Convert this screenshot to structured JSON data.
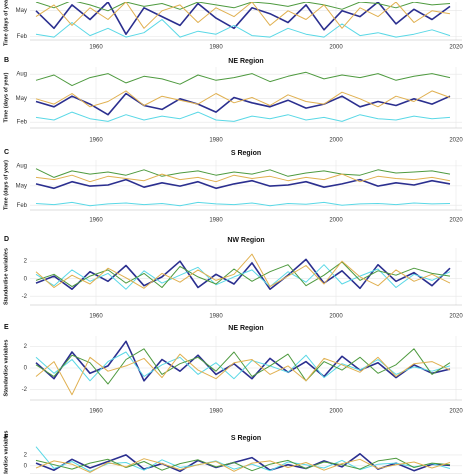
{
  "chart_data": [
    {
      "type": "line",
      "ylabel": "Time (days of year)",
      "x": [
        1950,
        1953,
        1956,
        1959,
        1962,
        1965,
        1968,
        1971,
        1974,
        1977,
        1980,
        1983,
        1986,
        1989,
        1992,
        1995,
        1998,
        2001,
        2004,
        2007,
        2010,
        2013,
        2016,
        2019
      ],
      "xlim": [
        1949,
        2021
      ],
      "xticks": [
        1960,
        1980,
        2000,
        2020
      ],
      "ylim": [
        20,
        150
      ],
      "yticks": [
        {
          "value": 32,
          "label": "Feb"
        },
        {
          "value": 121,
          "label": "May"
        }
      ],
      "grid": true,
      "series": [
        {
          "color": "#2b2f8f",
          "values": [
            120,
            60,
            140,
            90,
            150,
            40,
            130,
            100,
            70,
            145,
            95,
            60,
            130,
            110,
            80,
            140,
            55,
            120,
            100,
            150,
            75,
            125,
            90,
            135
          ]
        },
        {
          "color": "#5ad8e6",
          "values": [
            40,
            30,
            80,
            35,
            60,
            30,
            45,
            90,
            30,
            50,
            40,
            70,
            35,
            30,
            60,
            40,
            30,
            75,
            35,
            45,
            30,
            40,
            55,
            35
          ]
        },
        {
          "color": "#4e9a3f",
          "values": [
            150,
            130,
            155,
            140,
            120,
            150,
            135,
            145,
            125,
            150,
            140,
            130,
            150,
            145,
            135,
            150,
            140,
            125,
            150,
            145,
            130,
            150,
            140,
            145
          ]
        },
        {
          "color": "#e0b050",
          "values": [
            100,
            140,
            70,
            130,
            90,
            150,
            60,
            120,
            140,
            80,
            130,
            100,
            150,
            70,
            120,
            90,
            140,
            60,
            130,
            100,
            150,
            80,
            120,
            110
          ]
        }
      ]
    },
    {
      "type": "line",
      "label": "B",
      "title": "NE Region",
      "ylabel": "Time (days of year)",
      "x": [
        1950,
        1953,
        1956,
        1959,
        1962,
        1965,
        1968,
        1971,
        1974,
        1977,
        1980,
        1983,
        1986,
        1989,
        1992,
        1995,
        1998,
        2001,
        2004,
        2007,
        2010,
        2013,
        2016,
        2019
      ],
      "xlim": [
        1949,
        2021
      ],
      "xticks": [
        1960,
        1980,
        2000,
        2020
      ],
      "ylim": [
        10,
        240
      ],
      "yticks": [
        {
          "value": 32,
          "label": "Feb"
        },
        {
          "value": 121,
          "label": "May"
        },
        {
          "value": 213,
          "label": "Aug"
        }
      ],
      "grid": true,
      "series": [
        {
          "color": "#2b2f8f",
          "values": [
            110,
            90,
            130,
            100,
            60,
            140,
            95,
            80,
            120,
            100,
            70,
            125,
            105,
            90,
            115,
            85,
            100,
            130,
            90,
            110,
            95,
            120,
            100,
            130
          ]
        },
        {
          "color": "#5ad8e6",
          "values": [
            50,
            40,
            70,
            45,
            35,
            60,
            40,
            55,
            45,
            70,
            40,
            35,
            55,
            45,
            60,
            40,
            50,
            35,
            60,
            45,
            40,
            55,
            45,
            50
          ]
        },
        {
          "color": "#4e9a3f",
          "values": [
            190,
            210,
            170,
            200,
            215,
            180,
            205,
            195,
            175,
            210,
            190,
            200,
            215,
            185,
            205,
            220,
            195,
            210,
            200,
            215,
            190,
            205,
            215,
            200
          ]
        },
        {
          "color": "#e0b050",
          "values": [
            120,
            100,
            140,
            90,
            110,
            150,
            95,
            130,
            115,
            100,
            140,
            105,
            125,
            95,
            135,
            110,
            100,
            145,
            120,
            90,
            130,
            110,
            150,
            125
          ]
        }
      ]
    },
    {
      "type": "line",
      "label": "C",
      "title": "S Region",
      "ylabel": "Time (days of year)",
      "x": [
        1950,
        1953,
        1956,
        1959,
        1962,
        1965,
        1968,
        1971,
        1974,
        1977,
        1980,
        1983,
        1986,
        1989,
        1992,
        1995,
        1998,
        2001,
        2004,
        2007,
        2010,
        2013,
        2016,
        2019
      ],
      "xlim": [
        1949,
        2021
      ],
      "xticks": [
        1960,
        1980,
        2000,
        2020
      ],
      "ylim": [
        10,
        240
      ],
      "yticks": [
        {
          "value": 32,
          "label": "Feb"
        },
        {
          "value": 121,
          "label": "May"
        },
        {
          "value": 213,
          "label": "Aug"
        }
      ],
      "grid": true,
      "series": [
        {
          "color": "#2b2f8f",
          "values": [
            130,
            110,
            140,
            120,
            125,
            150,
            115,
            135,
            120,
            140,
            110,
            130,
            145,
            120,
            125,
            140,
            115,
            130,
            150,
            120,
            135,
            125,
            145,
            130
          ]
        },
        {
          "color": "#5ad8e6",
          "values": [
            40,
            35,
            45,
            30,
            38,
            42,
            35,
            40,
            30,
            45,
            38,
            35,
            42,
            30,
            40,
            36,
            45,
            32,
            38,
            40,
            35,
            42,
            38,
            40
          ]
        },
        {
          "color": "#4e9a3f",
          "values": [
            200,
            160,
            190,
            175,
            185,
            170,
            195,
            165,
            180,
            190,
            170,
            185,
            175,
            195,
            165,
            180,
            190,
            175,
            170,
            195,
            180,
            185,
            190,
            175
          ]
        },
        {
          "color": "#e0b050",
          "values": [
            160,
            150,
            170,
            140,
            165,
            155,
            145,
            175,
            150,
            160,
            140,
            170,
            155,
            165,
            145,
            160,
            150,
            175,
            140,
            165,
            155,
            150,
            160,
            145
          ]
        }
      ]
    },
    {
      "type": "line",
      "label": "D",
      "title": "NW Region",
      "ylabel": "Standardise variables",
      "x": [
        1950,
        1953,
        1956,
        1959,
        1962,
        1965,
        1968,
        1971,
        1974,
        1977,
        1980,
        1983,
        1986,
        1989,
        1992,
        1995,
        1998,
        2001,
        2004,
        2007,
        2010,
        2013,
        2016,
        2019
      ],
      "xlim": [
        1949,
        2021
      ],
      "xticks": [
        1960,
        1980,
        2000,
        2020
      ],
      "ylim": [
        -3,
        3.5
      ],
      "yticks": [
        -2,
        0,
        2
      ],
      "grid": true,
      "series": [
        {
          "color": "#2b2f8f",
          "values": [
            -0.5,
            0.3,
            -1.2,
            0.8,
            -0.3,
            1.5,
            -0.8,
            0.2,
            2.0,
            -1.0,
            0.5,
            -0.6,
            1.8,
            -1.2,
            0.4,
            2.2,
            -0.5,
            0.9,
            -1.1,
            1.6,
            -0.3,
            0.7,
            -0.8,
            1.2
          ]
        },
        {
          "color": "#5ad8e6",
          "values": [
            0.5,
            -0.8,
            1.0,
            -0.3,
            0.6,
            -1.2,
            0.9,
            -0.5,
            0.4,
            1.3,
            -0.7,
            0.2,
            1.0,
            -0.9,
            0.8,
            -0.4,
            1.6,
            -0.6,
            0.3,
            1.1,
            -1.0,
            0.5,
            -0.2,
            0.8
          ]
        },
        {
          "color": "#4e9a3f",
          "values": [
            -0.2,
            0.5,
            -0.9,
            0.3,
            1.0,
            -0.5,
            0.6,
            -1.0,
            1.4,
            0.2,
            -0.6,
            1.1,
            -0.3,
            0.8,
            1.6,
            -0.8,
            0.4,
            1.9,
            -0.2,
            0.9,
            0.4,
            1.2,
            0.6,
            0.3
          ]
        },
        {
          "color": "#e0b050",
          "values": [
            0.8,
            -1.0,
            0.4,
            -0.6,
            1.2,
            0.1,
            -1.1,
            0.6,
            -0.4,
            1.0,
            -0.2,
            0.5,
            2.8,
            -0.9,
            0.3,
            1.5,
            -0.6,
            2.0,
            0.2,
            -0.8,
            1.0,
            -0.3,
            0.5,
            -0.5
          ]
        }
      ]
    },
    {
      "type": "line",
      "label": "E",
      "title": "NE Region",
      "ylabel": "Standardise variables",
      "x": [
        1950,
        1953,
        1956,
        1959,
        1962,
        1965,
        1968,
        1971,
        1974,
        1977,
        1980,
        1983,
        1986,
        1989,
        1992,
        1995,
        1998,
        2001,
        2004,
        2007,
        2010,
        2013,
        2016,
        2019
      ],
      "xlim": [
        1949,
        2021
      ],
      "xticks": [
        1960,
        1980,
        2000,
        2020
      ],
      "ylim": [
        -3,
        3
      ],
      "yticks": [
        -2,
        0,
        2
      ],
      "grid": true,
      "series": [
        {
          "color": "#2b2f8f",
          "values": [
            0.5,
            -1.0,
            1.5,
            -0.5,
            0.2,
            2.5,
            -1.2,
            0.8,
            -0.3,
            1.2,
            -0.6,
            0.4,
            -1.0,
            0.9,
            -0.4,
            0.6,
            -0.8,
            1.1,
            -0.2,
            0.5,
            -0.9,
            0.3,
            -0.5,
            -0.1
          ]
        },
        {
          "color": "#5ad8e6",
          "values": [
            1.0,
            -0.5,
            0.8,
            -1.2,
            0.6,
            1.5,
            -0.8,
            0.3,
            1.0,
            -0.6,
            0.5,
            -1.0,
            0.7,
            0.2,
            -0.4,
            1.2,
            -0.9,
            0.4,
            -0.2,
            0.8,
            -0.6,
            0.1,
            -0.3,
            0.2
          ]
        },
        {
          "color": "#4e9a3f",
          "values": [
            0.3,
            -0.8,
            1.2,
            0.5,
            -1.5,
            0.8,
            1.8,
            -0.6,
            0.4,
            1.0,
            -0.3,
            1.5,
            -0.8,
            0.2,
            1.3,
            -1.2,
            0.6,
            -0.2,
            1.0,
            -0.5,
            0.3,
            1.8,
            -0.6,
            0.5
          ]
        },
        {
          "color": "#e0b050",
          "values": [
            -0.8,
            0.6,
            -2.5,
            1.0,
            -0.3,
            0.2,
            0.9,
            -0.9,
            1.3,
            -0.2,
            -1.0,
            0.5,
            0.8,
            -0.6,
            0.2,
            -1.2,
            0.9,
            0.3,
            -0.4,
            1.0,
            -0.8,
            0.4,
            0.6,
            -0.2
          ]
        }
      ]
    },
    {
      "type": "line",
      "label": "F",
      "title": "S Region",
      "ylabel": "Standardise variables",
      "x": [
        1950,
        1953,
        1956,
        1959,
        1962,
        1965,
        1968,
        1971,
        1974,
        1977,
        1980,
        1983,
        1986,
        1989,
        1992,
        1995,
        1998,
        2001,
        2004,
        2007,
        2010,
        2013,
        2016,
        2019
      ],
      "xlim": [
        1949,
        2021
      ],
      "ylim": [
        -1.5,
        4
      ],
      "yticks": [
        0,
        2
      ],
      "grid": true,
      "series": [
        {
          "color": "#2b2f8f",
          "values": [
            0.5,
            -0.8,
            1.2,
            -0.4,
            0.8,
            2.0,
            -0.6,
            0.4,
            -1.0,
            1.0,
            -0.3,
            0.6,
            1.5,
            -0.8,
            0.2,
            -0.5,
            0.9,
            -0.2,
            2.2,
            -0.6,
            0.5,
            -0.9,
            0.3,
            0.1
          ]
        },
        {
          "color": "#5ad8e6",
          "values": [
            3.5,
            -0.5,
            0.8,
            -1.0,
            0.4,
            0.6,
            -0.8,
            1.1,
            -0.3,
            0.2,
            0.9,
            -0.6,
            0.3,
            -0.9,
            0.7,
            0.2,
            -0.4,
            1.0,
            -0.7,
            0.3,
            0.5,
            -0.2,
            0.4,
            -0.5
          ]
        },
        {
          "color": "#4e9a3f",
          "values": [
            1.0,
            0.2,
            -0.6,
            0.5,
            1.2,
            -0.3,
            0.8,
            -0.8,
            0.4,
            1.1,
            -0.2,
            0.6,
            -0.9,
            0.3,
            1.0,
            -0.5,
            0.7,
            0.2,
            -0.6,
            0.9,
            1.4,
            -0.3,
            0.5,
            0.2
          ]
        },
        {
          "color": "#e0b050",
          "values": [
            -0.4,
            0.9,
            0.3,
            -1.2,
            0.6,
            -0.2,
            1.3,
            0.4,
            -0.7,
            0.2,
            0.8,
            -1.0,
            0.5,
            0.9,
            -0.3,
            0.6,
            -0.8,
            0.4,
            1.2,
            -0.5,
            0.2,
            0.7,
            -0.4,
            0.6
          ]
        }
      ]
    }
  ]
}
